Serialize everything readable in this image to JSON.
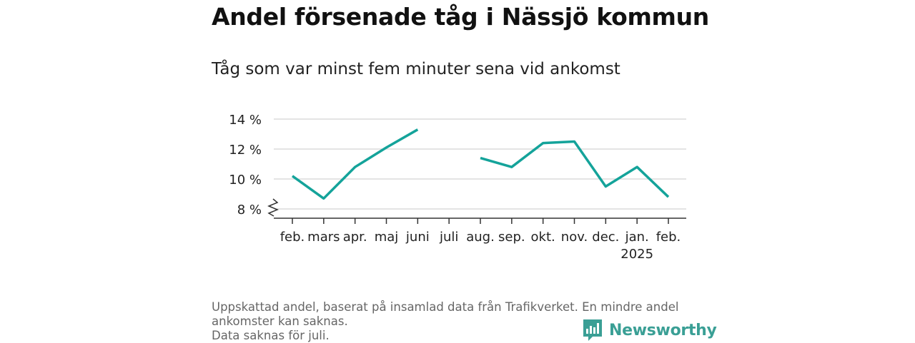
{
  "title": "Andel försenade tåg i Nässjö kommun",
  "subtitle": "Tåg som var minst fem minuter sena vid ankomst",
  "footnote": {
    "lines": [
      "Uppskattad andel, baserat på insamlad data från Trafikverket. En mindre andel",
      "ankomster kan saknas.",
      "Data saknas för juli."
    ]
  },
  "brand": {
    "name": "Newsworthy",
    "icon": "bar-chart-bubble-icon",
    "color": "#3a9f95"
  },
  "chart_data": {
    "type": "line",
    "title": "Andel försenade tåg i Nässjö kommun",
    "subtitle": "Tåg som var minst fem minuter sena vid ankomst",
    "xlabel": "",
    "ylabel": "",
    "categories": [
      "feb.",
      "mars",
      "apr.",
      "maj",
      "juni",
      "juli",
      "aug.",
      "sep.",
      "okt.",
      "nov.",
      "dec.",
      "jan.",
      "feb."
    ],
    "year_labels": [
      "",
      "",
      "",
      "",
      "",
      "",
      "",
      "",
      "",
      "",
      "",
      "2025",
      ""
    ],
    "series": [
      {
        "color": "#14a39a",
        "values": [
          10.2,
          8.7,
          10.8,
          12.1,
          13.3,
          null,
          11.4,
          10.8,
          12.4,
          12.5,
          9.5,
          10.8,
          8.8
        ]
      }
    ],
    "yticks": [
      8,
      10,
      12,
      14
    ],
    "ytick_labels": [
      "8 %",
      "10 %",
      "12 %",
      "14 %"
    ],
    "ylim": [
      7.45,
      14
    ],
    "axis_break": true,
    "grid": true,
    "legend": "none"
  }
}
